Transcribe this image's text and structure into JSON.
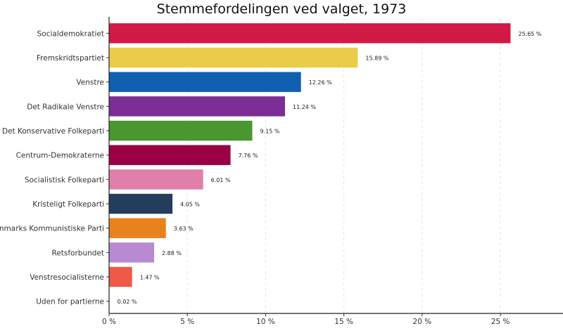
{
  "chart_data": {
    "type": "bar",
    "orientation": "horizontal",
    "title": "Stemmefordelingen ved valget, 1973",
    "xlabel": "",
    "ylabel": "",
    "xlim": [
      0,
      29
    ],
    "x_ticks": [
      0,
      5,
      10,
      15,
      20,
      25
    ],
    "x_tick_labels": [
      "0 %",
      "5 %",
      "10 %",
      "15 %",
      "20 %",
      "25 %"
    ],
    "grid": "vertical dashed",
    "legend": "none",
    "categories": [
      "Socialdemokratiet",
      "Fremskridtspartiet",
      "Venstre",
      "Det Radikale Venstre",
      "Det Konservative Folkeparti",
      "Centrum-Demokraterne",
      "Socialistisk Folkeparti",
      "Kristeligt Folkeparti",
      "Danmarks Kommunistiske Parti",
      "Retsforbundet",
      "Venstresocialisterne",
      "Uden for partierne"
    ],
    "values": [
      25.65,
      15.89,
      12.26,
      11.24,
      9.15,
      7.76,
      6.01,
      4.05,
      3.63,
      2.88,
      1.47,
      0.02
    ],
    "value_labels": [
      "25.65 %",
      "15.89 %",
      "12.26 %",
      "11.24 %",
      "9.15 %",
      "7.76 %",
      "6.01 %",
      "4.05 %",
      "3.63 %",
      "2.88 %",
      "1.47 %",
      "0.02 %"
    ],
    "colors": [
      "#d11a46",
      "#ebcb4a",
      "#1060b0",
      "#7b2f96",
      "#4a9731",
      "#990045",
      "#e17fab",
      "#243d5c",
      "#e8821e",
      "#b78ad1",
      "#ef5947",
      "#d9d9d9"
    ]
  }
}
